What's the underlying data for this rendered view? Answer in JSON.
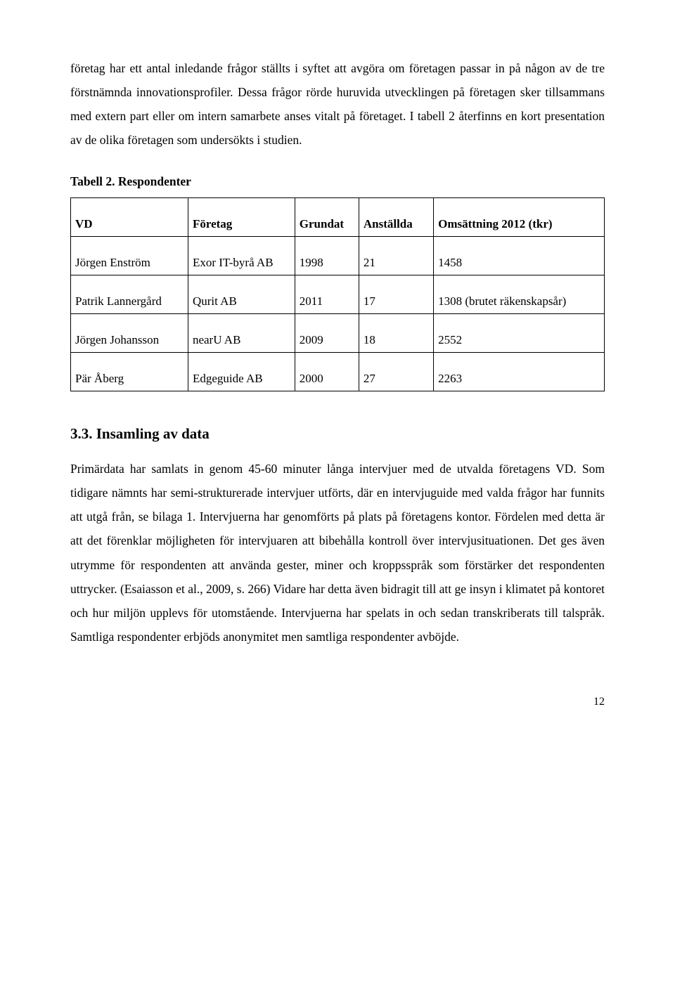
{
  "intro": {
    "para1": "företag har ett antal inledande frågor ställts i syftet att avgöra om företagen passar in på någon av de tre förstnämnda innovationsprofiler. Dessa frågor rörde huruvida utvecklingen på företagen sker tillsammans med extern part eller om intern samarbete anses vitalt på företaget. I tabell 2 återfinns en kort presentation av de olika företagen som undersökts i studien."
  },
  "table": {
    "caption": "Tabell 2. Respondenter",
    "columns": [
      "VD",
      "Företag",
      "Grundat",
      "Anställda",
      "Omsättning 2012 (tkr)"
    ],
    "rows": [
      [
        "Jörgen Enström",
        "Exor IT-byrå AB",
        "1998",
        "21",
        "1458"
      ],
      [
        "Patrik Lannergård",
        "Qurit AB",
        "2011",
        "17",
        "1308 (brutet räkenskapsår)"
      ],
      [
        "Jörgen Johansson",
        "nearU AB",
        "2009",
        "18",
        "2552"
      ],
      [
        "Pär Åberg",
        "Edgeguide AB",
        "2000",
        "27",
        "2263"
      ]
    ]
  },
  "section": {
    "heading": "3.3. Insamling av data",
    "body": "Primärdata har samlats in genom 45-60 minuter långa intervjuer med de utvalda företagens VD. Som tidigare nämnts har semi-strukturerade intervjuer utförts, där en intervjuguide med valda frågor har funnits att utgå från, se bilaga 1. Intervjuerna har genomförts på plats på företagens kontor. Fördelen med detta är att det förenklar möjligheten för intervjuaren att bibehålla kontroll över intervjusituationen. Det ges även utrymme för respondenten att använda gester, miner och kroppsspråk som förstärker det respondenten uttrycker. (Esaiasson et al., 2009, s. 266) Vidare har detta även bidragit till att ge insyn i klimatet på kontoret och hur miljön upplevs för utomstående. Intervjuerna har spelats in och sedan transkriberats till talspråk. Samtliga respondenter erbjöds anonymitet men samtliga respondenter avböjde."
  },
  "pageNumber": "12"
}
